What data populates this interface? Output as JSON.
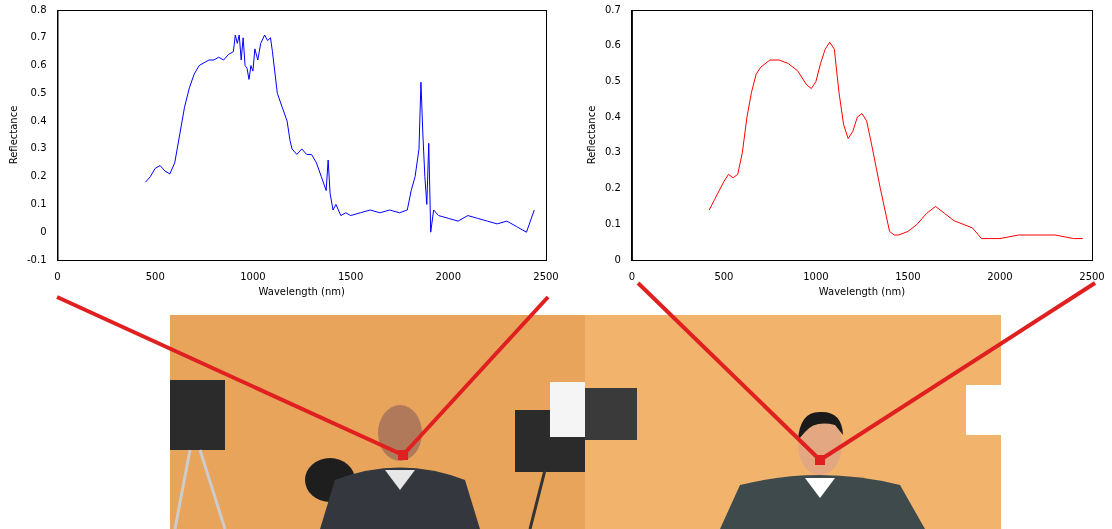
{
  "chart_data": [
    {
      "type": "line",
      "x_label": "Wavelength (nm)",
      "y_label": "Reflectance",
      "color": "#0000ff",
      "xlim": [
        0,
        2500
      ],
      "xticks": [
        0,
        500,
        1000,
        1500,
        2000,
        2500
      ],
      "ylim": [
        -0.1,
        0.8
      ],
      "yticks": [
        -0.1,
        0,
        0.1,
        0.2,
        0.3,
        0.4,
        0.5,
        0.6,
        0.7,
        0.8
      ],
      "grid": false,
      "x": [
        450,
        475,
        500,
        525,
        550,
        575,
        600,
        625,
        650,
        675,
        700,
        725,
        750,
        775,
        800,
        825,
        850,
        875,
        900,
        910,
        920,
        930,
        940,
        950,
        960,
        970,
        980,
        990,
        1000,
        1010,
        1025,
        1040,
        1060,
        1075,
        1090,
        1100,
        1125,
        1150,
        1175,
        1190,
        1200,
        1225,
        1250,
        1275,
        1300,
        1325,
        1350,
        1375,
        1385,
        1395,
        1410,
        1425,
        1450,
        1475,
        1500,
        1550,
        1600,
        1650,
        1700,
        1750,
        1790,
        1810,
        1830,
        1850,
        1860,
        1870,
        1880,
        1890,
        1900,
        1910,
        1925,
        1950,
        2000,
        2050,
        2100,
        2150,
        2200,
        2250,
        2300,
        2350,
        2400,
        2420,
        2440
      ],
      "values": [
        0.18,
        0.2,
        0.23,
        0.24,
        0.22,
        0.21,
        0.25,
        0.35,
        0.45,
        0.52,
        0.57,
        0.6,
        0.61,
        0.62,
        0.62,
        0.63,
        0.62,
        0.64,
        0.65,
        0.71,
        0.68,
        0.71,
        0.62,
        0.7,
        0.6,
        0.59,
        0.55,
        0.6,
        0.58,
        0.66,
        0.62,
        0.68,
        0.71,
        0.69,
        0.7,
        0.65,
        0.5,
        0.45,
        0.4,
        0.33,
        0.3,
        0.28,
        0.3,
        0.28,
        0.28,
        0.25,
        0.2,
        0.15,
        0.26,
        0.14,
        0.08,
        0.1,
        0.06,
        0.07,
        0.06,
        0.07,
        0.08,
        0.07,
        0.08,
        0.07,
        0.08,
        0.15,
        0.2,
        0.3,
        0.54,
        0.35,
        0.2,
        0.1,
        0.32,
        0.0,
        0.08,
        0.06,
        0.05,
        0.04,
        0.06,
        0.05,
        0.04,
        0.03,
        0.04,
        0.02,
        0.0,
        0.04,
        0.08
      ]
    },
    {
      "type": "line",
      "x_label": "Wavelength (nm)",
      "y_label": "Reflectance",
      "color": "#ff0000",
      "xlim": [
        0,
        2500
      ],
      "xticks": [
        0,
        500,
        1000,
        1500,
        2000,
        2500
      ],
      "ylim": [
        0,
        0.7
      ],
      "yticks": [
        0,
        0.1,
        0.2,
        0.3,
        0.4,
        0.5,
        0.6,
        0.7
      ],
      "grid": false,
      "x": [
        420,
        450,
        500,
        525,
        550,
        575,
        600,
        625,
        650,
        675,
        700,
        750,
        800,
        850,
        900,
        950,
        975,
        1000,
        1025,
        1050,
        1075,
        1100,
        1125,
        1150,
        1175,
        1200,
        1225,
        1250,
        1275,
        1300,
        1350,
        1400,
        1425,
        1450,
        1500,
        1550,
        1600,
        1650,
        1700,
        1750,
        1800,
        1850,
        1900,
        1950,
        2000,
        2100,
        2200,
        2300,
        2400,
        2450
      ],
      "values": [
        0.14,
        0.17,
        0.22,
        0.24,
        0.23,
        0.24,
        0.3,
        0.4,
        0.47,
        0.52,
        0.54,
        0.56,
        0.56,
        0.55,
        0.53,
        0.49,
        0.48,
        0.5,
        0.55,
        0.59,
        0.61,
        0.59,
        0.47,
        0.38,
        0.34,
        0.36,
        0.4,
        0.41,
        0.39,
        0.33,
        0.2,
        0.08,
        0.07,
        0.07,
        0.08,
        0.1,
        0.13,
        0.15,
        0.13,
        0.11,
        0.1,
        0.09,
        0.06,
        0.06,
        0.06,
        0.07,
        0.07,
        0.07,
        0.06,
        0.06
      ]
    }
  ]
}
